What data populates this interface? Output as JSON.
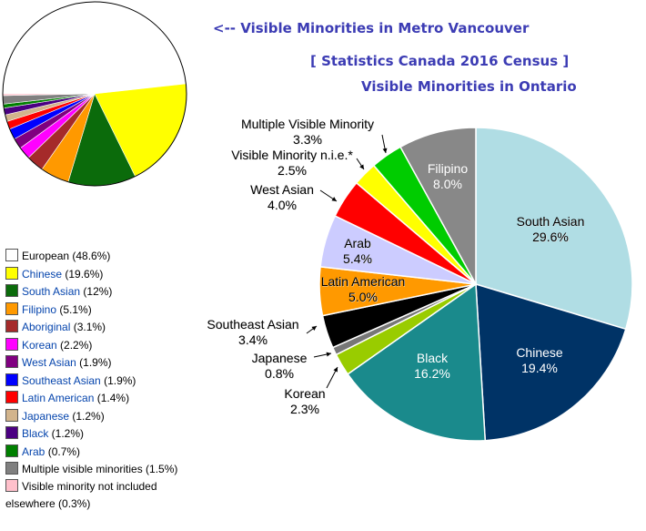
{
  "titles": {
    "vancouver_pointer": "<-- Visible Minorities in Metro Vancouver",
    "source": "[ Statistics Canada 2016 Census ]",
    "ontario": "Visible Minorities in Ontario"
  },
  "chart_data": [
    {
      "type": "pie",
      "id": "vancouver",
      "slices": [
        {
          "label": "European",
          "value": 48.6,
          "color": "#ffffff",
          "linked": false
        },
        {
          "label": "Chinese",
          "value": 19.6,
          "color": "#ffff00",
          "linked": true
        },
        {
          "label": "South Asian",
          "value": 12,
          "color": "#0b6b0b",
          "linked": true
        },
        {
          "label": "Filipino",
          "value": 5.1,
          "color": "#ff9900",
          "linked": true
        },
        {
          "label": "Aboriginal",
          "value": 3.1,
          "color": "#a52a2a",
          "linked": true
        },
        {
          "label": "Korean",
          "value": 2.2,
          "color": "#ff00ff",
          "linked": true
        },
        {
          "label": "West Asian",
          "value": 1.9,
          "color": "#800080",
          "linked": true
        },
        {
          "label": "Southeast Asian",
          "value": 1.9,
          "color": "#0000ff",
          "linked": true
        },
        {
          "label": "Latin American",
          "value": 1.4,
          "color": "#ff0000",
          "linked": true
        },
        {
          "label": "Japanese",
          "value": 1.2,
          "color": "#d2b48c",
          "linked": true
        },
        {
          "label": "Black",
          "value": 1.2,
          "color": "#4b0082",
          "linked": true
        },
        {
          "label": "Arab",
          "value": 0.7,
          "color": "#008000",
          "linked": true
        },
        {
          "label": "Multiple visible minorities",
          "value": 1.5,
          "color": "#808080",
          "linked": false
        },
        {
          "label": "Visible minority not included elsewhere",
          "value": 0.3,
          "color": "#ffc0cb",
          "linked": false
        }
      ]
    },
    {
      "type": "pie",
      "id": "ontario",
      "slices": [
        {
          "label": "South Asian",
          "value": 29.6,
          "display": "29.6%",
          "color": "#b0dde4",
          "text_color": "#000000"
        },
        {
          "label": "Chinese",
          "value": 19.4,
          "display": "19.4%",
          "color": "#003366",
          "text_color": "#ffffff"
        },
        {
          "label": "Black",
          "value": 16.2,
          "display": "16.2%",
          "color": "#1a8a8c",
          "text_color": "#ffffff"
        },
        {
          "label": "Korean",
          "value": 2.3,
          "display": "2.3%",
          "color": "#99cc00",
          "text_color": "#000000"
        },
        {
          "label": "Japanese",
          "value": 0.8,
          "display": "0.8%",
          "color": "#777777",
          "text_color": "#000000"
        },
        {
          "label": "Southeast Asian",
          "value": 3.4,
          "display": "3.4%",
          "color": "#000000",
          "text_color": "#000000"
        },
        {
          "label": "Latin American",
          "value": 5.0,
          "display": "5.0%",
          "color": "#ff9900",
          "text_color": "#000000"
        },
        {
          "label": "Arab",
          "value": 5.4,
          "display": "5.4%",
          "color": "#ccccff",
          "text_color": "#000000"
        },
        {
          "label": "West Asian",
          "value": 4.0,
          "display": "4.0%",
          "color": "#ff0000",
          "text_color": "#000000"
        },
        {
          "label": "Visible Minority n.i.e.*",
          "value": 2.5,
          "display": "2.5%",
          "color": "#ffff00",
          "text_color": "#000000"
        },
        {
          "label": "Multiple Visible Minority",
          "value": 3.3,
          "display": "3.3%",
          "color": "#00cc00",
          "text_color": "#000000"
        },
        {
          "label": "Filipino",
          "value": 8.0,
          "display": "8.0%",
          "color": "#888888",
          "text_color": "#ffffff"
        }
      ]
    }
  ],
  "legend": [
    {
      "label": "European",
      "suffix": " (48.6%)",
      "color": "#ffffff",
      "linked": false
    },
    {
      "label": "Chinese",
      "suffix": " (19.6%)",
      "color": "#ffff00",
      "linked": true
    },
    {
      "label": "South Asian",
      "suffix": " (12%)",
      "color": "#0b6b0b",
      "linked": true
    },
    {
      "label": "Filipino",
      "suffix": " (5.1%)",
      "color": "#ff9900",
      "linked": true
    },
    {
      "label": "Aboriginal",
      "suffix": " (3.1%)",
      "color": "#a52a2a",
      "linked": true
    },
    {
      "label": "Korean",
      "suffix": " (2.2%)",
      "color": "#ff00ff",
      "linked": true
    },
    {
      "label": "West Asian",
      "suffix": " (1.9%)",
      "color": "#800080",
      "linked": true
    },
    {
      "label": "Southeast Asian",
      "suffix": " (1.9%)",
      "color": "#0000ff",
      "linked": true
    },
    {
      "label": "Latin American",
      "suffix": " (1.4%)",
      "color": "#ff0000",
      "linked": true
    },
    {
      "label": "Japanese",
      "suffix": " (1.2%)",
      "color": "#d2b48c",
      "linked": true
    },
    {
      "label": "Black",
      "suffix": " (1.2%)",
      "color": "#4b0082",
      "linked": true
    },
    {
      "label": "Arab",
      "suffix": " (0.7%)",
      "color": "#008000",
      "linked": true
    },
    {
      "label": "Multiple visible minorities",
      "suffix": " (1.5%)",
      "color": "#808080",
      "linked": false
    },
    {
      "label": "Visible minority not included elsewhere",
      "suffix": " (0.3%)",
      "color": "#ffc0cb",
      "linked": false
    }
  ]
}
